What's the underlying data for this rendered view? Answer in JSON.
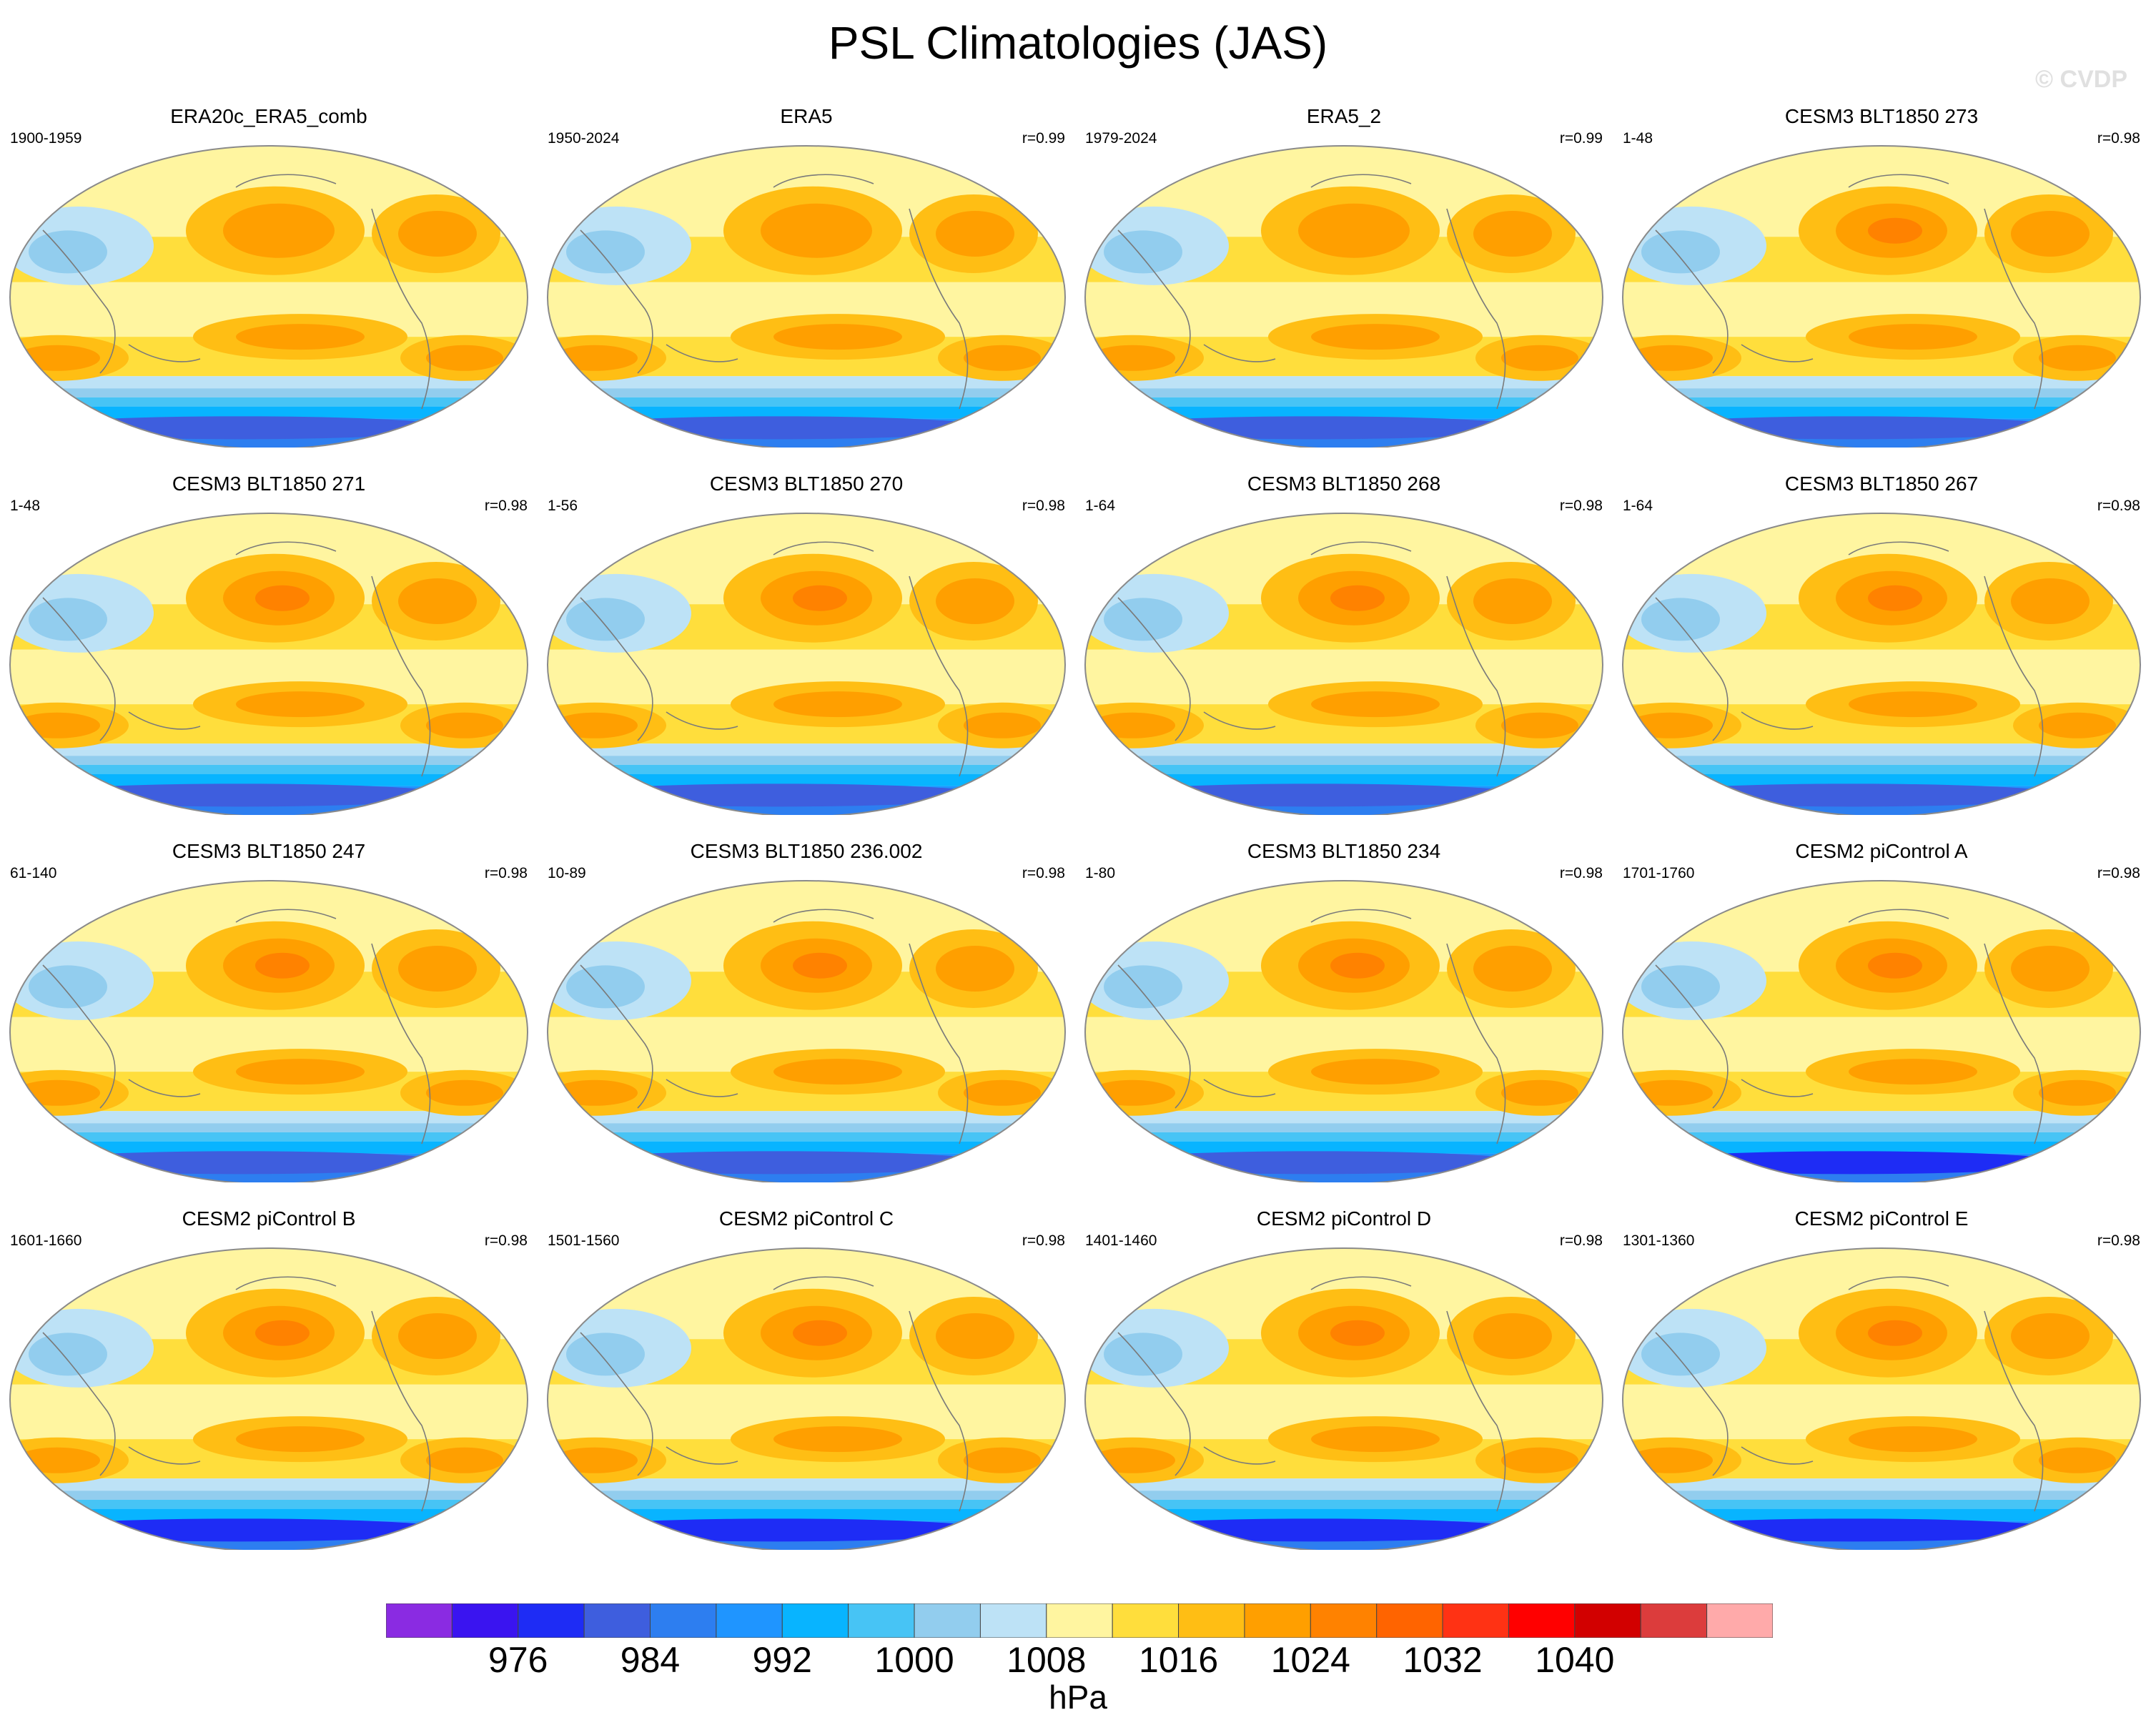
{
  "title": "PSL Climatologies (JAS)",
  "watermark": "© CVDP",
  "chart_data": {
    "type": "contour-map-panels",
    "projection": "Robinson (Pacific-centered)",
    "variable": "PSL",
    "season": "JAS",
    "panels": [
      {
        "name": "ERA20c_ERA5_comb",
        "years": "1900-1959",
        "r": ""
      },
      {
        "name": "ERA5",
        "years": "1950-2024",
        "r": "r=0.99"
      },
      {
        "name": "ERA5_2",
        "years": "1979-2024",
        "r": "r=0.99"
      },
      {
        "name": "CESM3 BLT1850 273",
        "years": "1-48",
        "r": "r=0.98"
      },
      {
        "name": "CESM3 BLT1850 271",
        "years": "1-48",
        "r": "r=0.98"
      },
      {
        "name": "CESM3 BLT1850 270",
        "years": "1-56",
        "r": "r=0.98"
      },
      {
        "name": "CESM3 BLT1850 268",
        "years": "1-64",
        "r": "r=0.98"
      },
      {
        "name": "CESM3 BLT1850 267",
        "years": "1-64",
        "r": "r=0.98"
      },
      {
        "name": "CESM3 BLT1850 247",
        "years": "61-140",
        "r": "r=0.98"
      },
      {
        "name": "CESM3 BLT1850 236.002",
        "years": "10-89",
        "r": "r=0.98"
      },
      {
        "name": "CESM3 BLT1850 234",
        "years": "1-80",
        "r": "r=0.98"
      },
      {
        "name": "CESM2 piControl A",
        "years": "1701-1760",
        "r": "r=0.98"
      },
      {
        "name": "CESM2 piControl B",
        "years": "1601-1660",
        "r": "r=0.98"
      },
      {
        "name": "CESM2 piControl C",
        "years": "1501-1560",
        "r": "r=0.98"
      },
      {
        "name": "CESM2 piControl D",
        "years": "1401-1460",
        "r": "r=0.98"
      },
      {
        "name": "CESM2 piControl E",
        "years": "1301-1360",
        "r": "r=0.98"
      }
    ],
    "colorbar": {
      "colors": [
        "#8a2be2",
        "#3a14f0",
        "#1e2cf5",
        "#3e5ede",
        "#2d7ef0",
        "#1f95ff",
        "#08b4ff",
        "#47c4f5",
        "#92cdee",
        "#bde2f6",
        "#fff5a0",
        "#ffde3c",
        "#ffbe14",
        "#ff9f00",
        "#ff8200",
        "#ff6400",
        "#ff3214",
        "#ff0000",
        "#d20000",
        "#dc3c3c",
        "#ffaaaa"
      ],
      "tick_labels": [
        "976",
        "984",
        "992",
        "1000",
        "1008",
        "1016",
        "1024",
        "1032",
        "1040"
      ],
      "units": "hPa"
    }
  }
}
